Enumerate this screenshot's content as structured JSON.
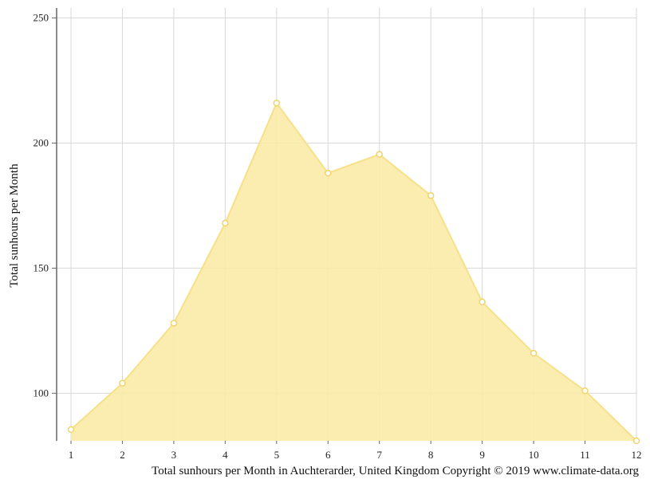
{
  "chart_data": {
    "type": "area",
    "title": "",
    "xlabel": "",
    "ylabel": "Total sunhours per Month",
    "x": [
      1,
      2,
      3,
      4,
      5,
      6,
      7,
      8,
      9,
      10,
      11,
      12
    ],
    "series": [
      {
        "values": [
          85.5,
          104,
          128,
          168,
          216,
          188,
          195.5,
          179,
          136.5,
          116,
          101,
          81
        ]
      }
    ],
    "xlim": [
      1,
      12
    ],
    "ylim": [
      81,
      254
    ],
    "yticks": [
      100,
      150,
      200,
      250
    ],
    "grid": true,
    "legend": "none",
    "colors": {
      "fill": "#f9eba6",
      "line": "#f7e08a",
      "marker_fill": "#ffffff",
      "marker_stroke": "#f0d46a",
      "grid": "#d8d8d8",
      "axis": "#666666"
    }
  },
  "caption": "Total sunhours per Month in Auchterarder, United Kingdom Copyright © 2019 www.climate-data.org"
}
